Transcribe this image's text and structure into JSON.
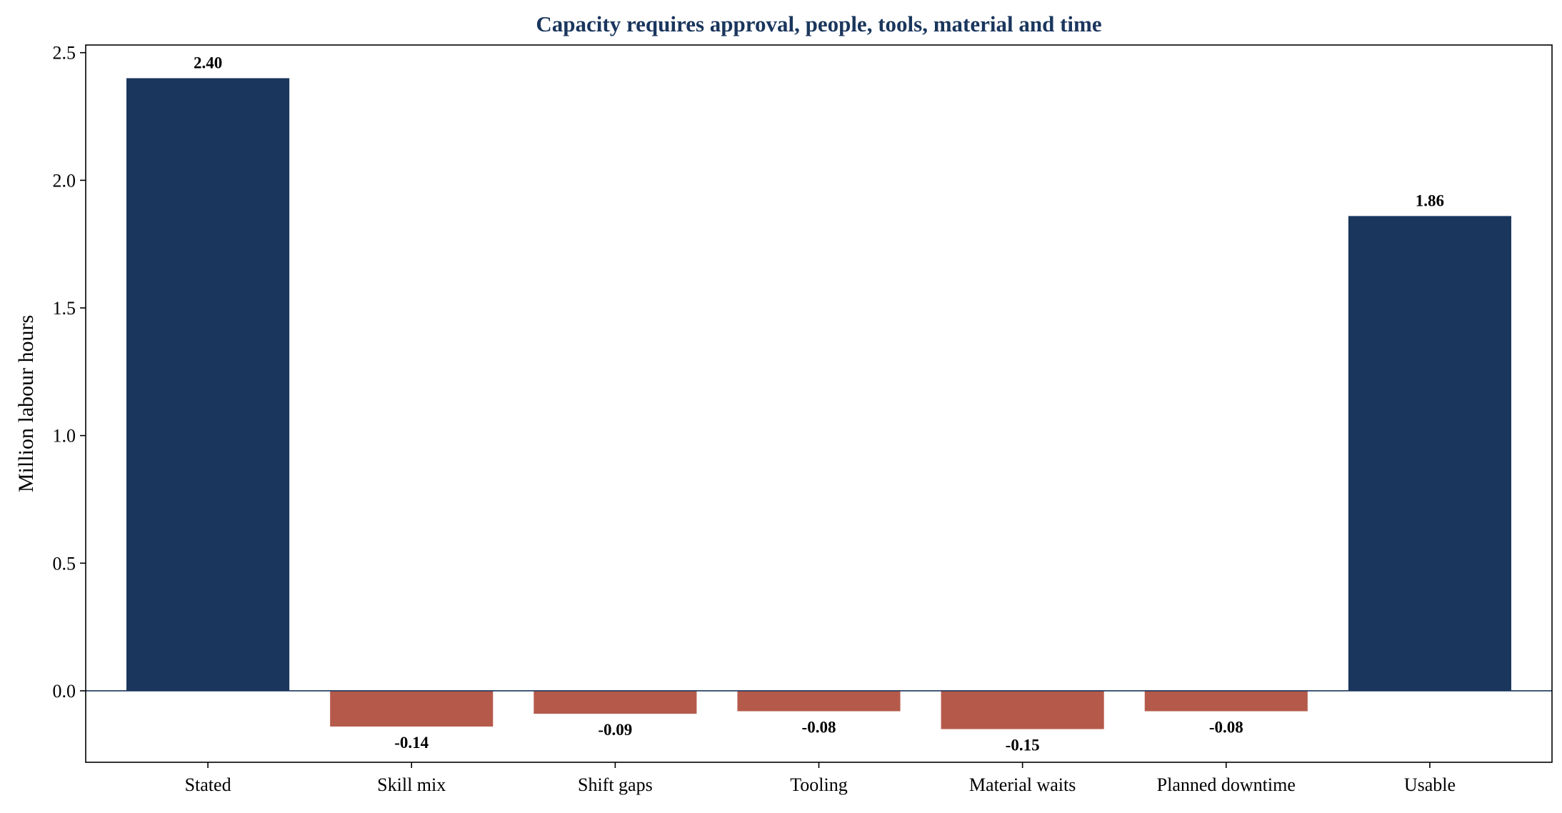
{
  "chart_data": {
    "type": "bar",
    "title": "Capacity requires approval, people, tools, material and time",
    "xlabel": "",
    "ylabel": "Million labour hours",
    "categories": [
      "Stated",
      "Skill mix",
      "Shift gaps",
      "Tooling",
      "Material waits",
      "Planned downtime",
      "Usable"
    ],
    "values": [
      2.4,
      -0.14,
      -0.09,
      -0.08,
      -0.15,
      -0.08,
      1.86
    ],
    "value_labels": [
      "2.40",
      "-0.14",
      "-0.09",
      "-0.08",
      "-0.15",
      "-0.08",
      "1.86"
    ],
    "yticks": [
      0.0,
      0.5,
      1.0,
      1.5,
      2.0,
      2.5
    ],
    "ytick_labels": [
      "0.0",
      "0.5",
      "1.0",
      "1.5",
      "2.0",
      "2.5"
    ],
    "ylim": [
      -0.28,
      2.53
    ],
    "grid": false,
    "legend": "none",
    "colors": {
      "total": "#1a365d",
      "decrease": "#b55a4b",
      "zero_line": "#1a365d",
      "title": "#1a365d",
      "axis": "#000000"
    }
  }
}
